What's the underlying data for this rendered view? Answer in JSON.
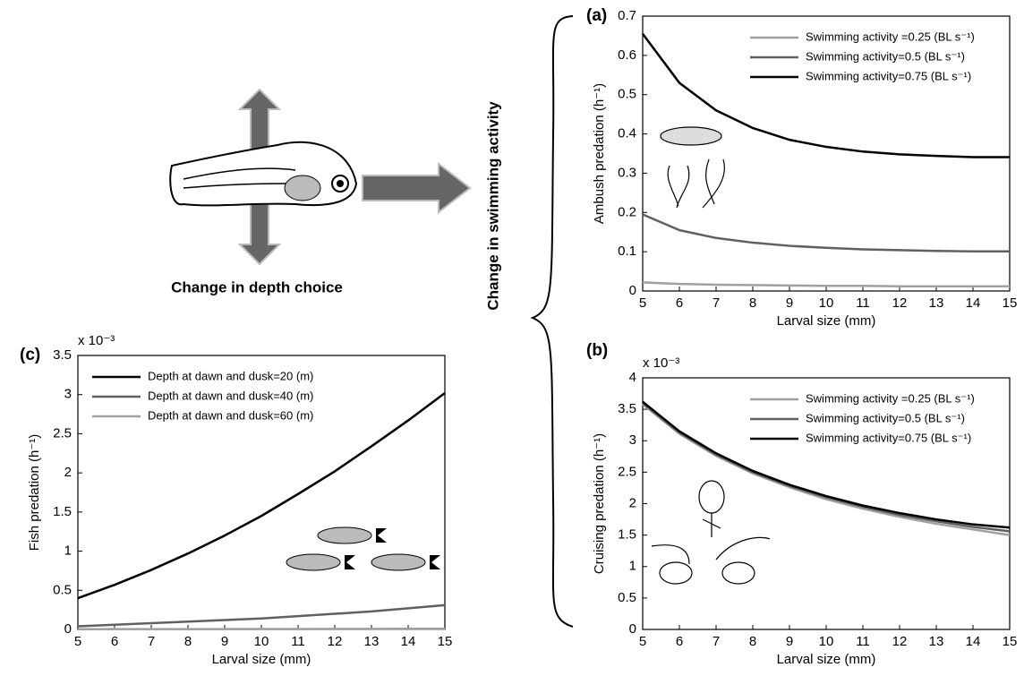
{
  "diagram": {
    "depth_label": "Change in depth choice",
    "swimming_label": "Change in swimming activity"
  },
  "chart_data": [
    {
      "type": "line",
      "panel_label": "(a)",
      "x_label": "Larval size (mm)",
      "y_label": "Ambush predation (h⁻¹)",
      "x": [
        5,
        6,
        7,
        8,
        9,
        10,
        11,
        12,
        13,
        14,
        15
      ],
      "series": [
        {
          "name": "Swimming activity =0.25 (BL s⁻¹)",
          "color": "#a0a0a0",
          "values": [
            0.022,
            0.018,
            0.016,
            0.015,
            0.014,
            0.013,
            0.013,
            0.012,
            0.012,
            0.012,
            0.012
          ]
        },
        {
          "name": "Swimming activity=0.5 (BL s⁻¹)",
          "color": "#606060",
          "values": [
            0.195,
            0.155,
            0.135,
            0.123,
            0.115,
            0.11,
            0.106,
            0.104,
            0.102,
            0.101,
            0.101
          ]
        },
        {
          "name": "Swimming activity=0.75 (BL s⁻¹)",
          "color": "#000000",
          "values": [
            0.655,
            0.53,
            0.46,
            0.415,
            0.385,
            0.367,
            0.355,
            0.348,
            0.344,
            0.341,
            0.341
          ]
        }
      ],
      "xlim": [
        5,
        15
      ],
      "xticks": [
        5,
        6,
        7,
        8,
        9,
        10,
        11,
        12,
        13,
        14,
        15
      ],
      "ylim": [
        0,
        0.7
      ],
      "yticks": [
        0,
        0.1,
        0.2,
        0.3,
        0.4,
        0.5,
        0.6,
        0.7
      ],
      "legend": "upper right"
    },
    {
      "type": "line",
      "panel_label": "(b)",
      "x_label": "Larval size (mm)",
      "y_label": "Cruising predation (h⁻¹)",
      "axis_multiplier": "x 10⁻³",
      "x": [
        5,
        6,
        7,
        8,
        9,
        10,
        11,
        12,
        13,
        14,
        15
      ],
      "series": [
        {
          "name": "Swimming activity =0.25 (BL s⁻¹)",
          "color": "#a0a0a0",
          "values": [
            3.58,
            3.11,
            2.76,
            2.48,
            2.26,
            2.07,
            1.92,
            1.79,
            1.68,
            1.59,
            1.5
          ]
        },
        {
          "name": "Swimming activity=0.5 (BL s⁻¹)",
          "color": "#606060",
          "values": [
            3.6,
            3.13,
            2.78,
            2.5,
            2.28,
            2.1,
            1.95,
            1.82,
            1.72,
            1.63,
            1.56
          ]
        },
        {
          "name": "Swimming activity=0.75 (BL s⁻¹)",
          "color": "#000000",
          "values": [
            3.62,
            3.15,
            2.8,
            2.52,
            2.3,
            2.12,
            1.97,
            1.85,
            1.75,
            1.67,
            1.62
          ]
        }
      ],
      "xlim": [
        5,
        15
      ],
      "xticks": [
        5,
        6,
        7,
        8,
        9,
        10,
        11,
        12,
        13,
        14,
        15
      ],
      "ylim": [
        0,
        4
      ],
      "yticks": [
        0,
        0.5,
        1,
        1.5,
        2,
        2.5,
        3,
        3.5,
        4
      ],
      "legend": "upper right"
    },
    {
      "type": "line",
      "panel_label": "(c)",
      "x_label": "Larval size (mm)",
      "y_label": "Fish predation (h⁻¹)",
      "axis_multiplier": "x 10⁻³",
      "x": [
        5,
        6,
        7,
        8,
        9,
        10,
        11,
        12,
        13,
        14,
        15
      ],
      "series": [
        {
          "name": "Depth at dawn and dusk=20 (m)",
          "color": "#000000",
          "values": [
            0.4,
            0.57,
            0.76,
            0.97,
            1.2,
            1.45,
            1.73,
            2.02,
            2.34,
            2.67,
            3.02
          ]
        },
        {
          "name": "Depth at dawn and dusk=40 (m)",
          "color": "#606060",
          "values": [
            0.04,
            0.06,
            0.08,
            0.1,
            0.12,
            0.14,
            0.17,
            0.2,
            0.23,
            0.27,
            0.31
          ]
        },
        {
          "name": "Depth at dawn and dusk=60 (m)",
          "color": "#a0a0a0",
          "values": [
            0.003,
            0.004,
            0.004,
            0.005,
            0.005,
            0.006,
            0.006,
            0.007,
            0.007,
            0.008,
            0.008
          ]
        }
      ],
      "xlim": [
        5,
        15
      ],
      "xticks": [
        5,
        6,
        7,
        8,
        9,
        10,
        11,
        12,
        13,
        14,
        15
      ],
      "ylim": [
        0,
        3.5
      ],
      "yticks": [
        0,
        0.5,
        1,
        1.5,
        2,
        2.5,
        3,
        3.5
      ],
      "legend": "upper left"
    }
  ]
}
